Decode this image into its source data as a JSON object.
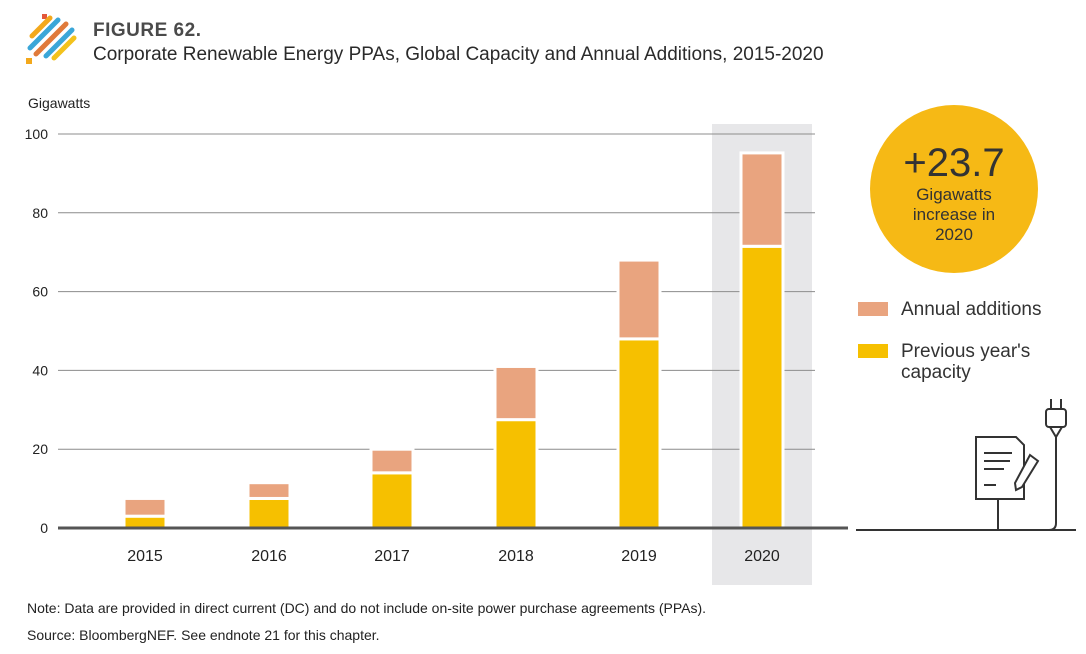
{
  "header": {
    "figure_label": "FIGURE 62.",
    "title": "Corporate Renewable Energy PPAs, Global Capacity and Annual Additions, 2015-2020"
  },
  "callout": {
    "value": "+23.7",
    "text": "Gigawatts increase in 2020"
  },
  "legend": [
    {
      "label": "Annual additions",
      "color": "#e9a47f"
    },
    {
      "label": "Previous year's capacity",
      "color": "#f6c000"
    }
  ],
  "notes": {
    "note": "Note: Data are provided in direct current (DC) and do not include on-site power purchase agreements (PPAs).",
    "source": "Source: BloombergNEF. See endnote 21 for this chapter."
  },
  "chart_data": {
    "type": "bar",
    "stacked": true,
    "title": "Corporate Renewable Energy PPAs, Global Capacity and Annual Additions, 2015-2020",
    "ylabel": "Gigawatts",
    "ylim": [
      0,
      100
    ],
    "yticks": [
      0,
      20,
      40,
      60,
      80,
      100
    ],
    "grid": true,
    "legend_position": "right",
    "highlight_category": "2020",
    "categories": [
      "2015",
      "2016",
      "2017",
      "2018",
      "2019",
      "2020"
    ],
    "series": [
      {
        "name": "Previous year's capacity",
        "color": "#f6c000",
        "values": [
          3,
          7.5,
          14,
          27.5,
          48,
          71.5
        ]
      },
      {
        "name": "Annual additions",
        "color": "#e9a47f",
        "values": [
          4.5,
          4,
          6,
          13.5,
          20,
          23.7
        ]
      }
    ]
  }
}
